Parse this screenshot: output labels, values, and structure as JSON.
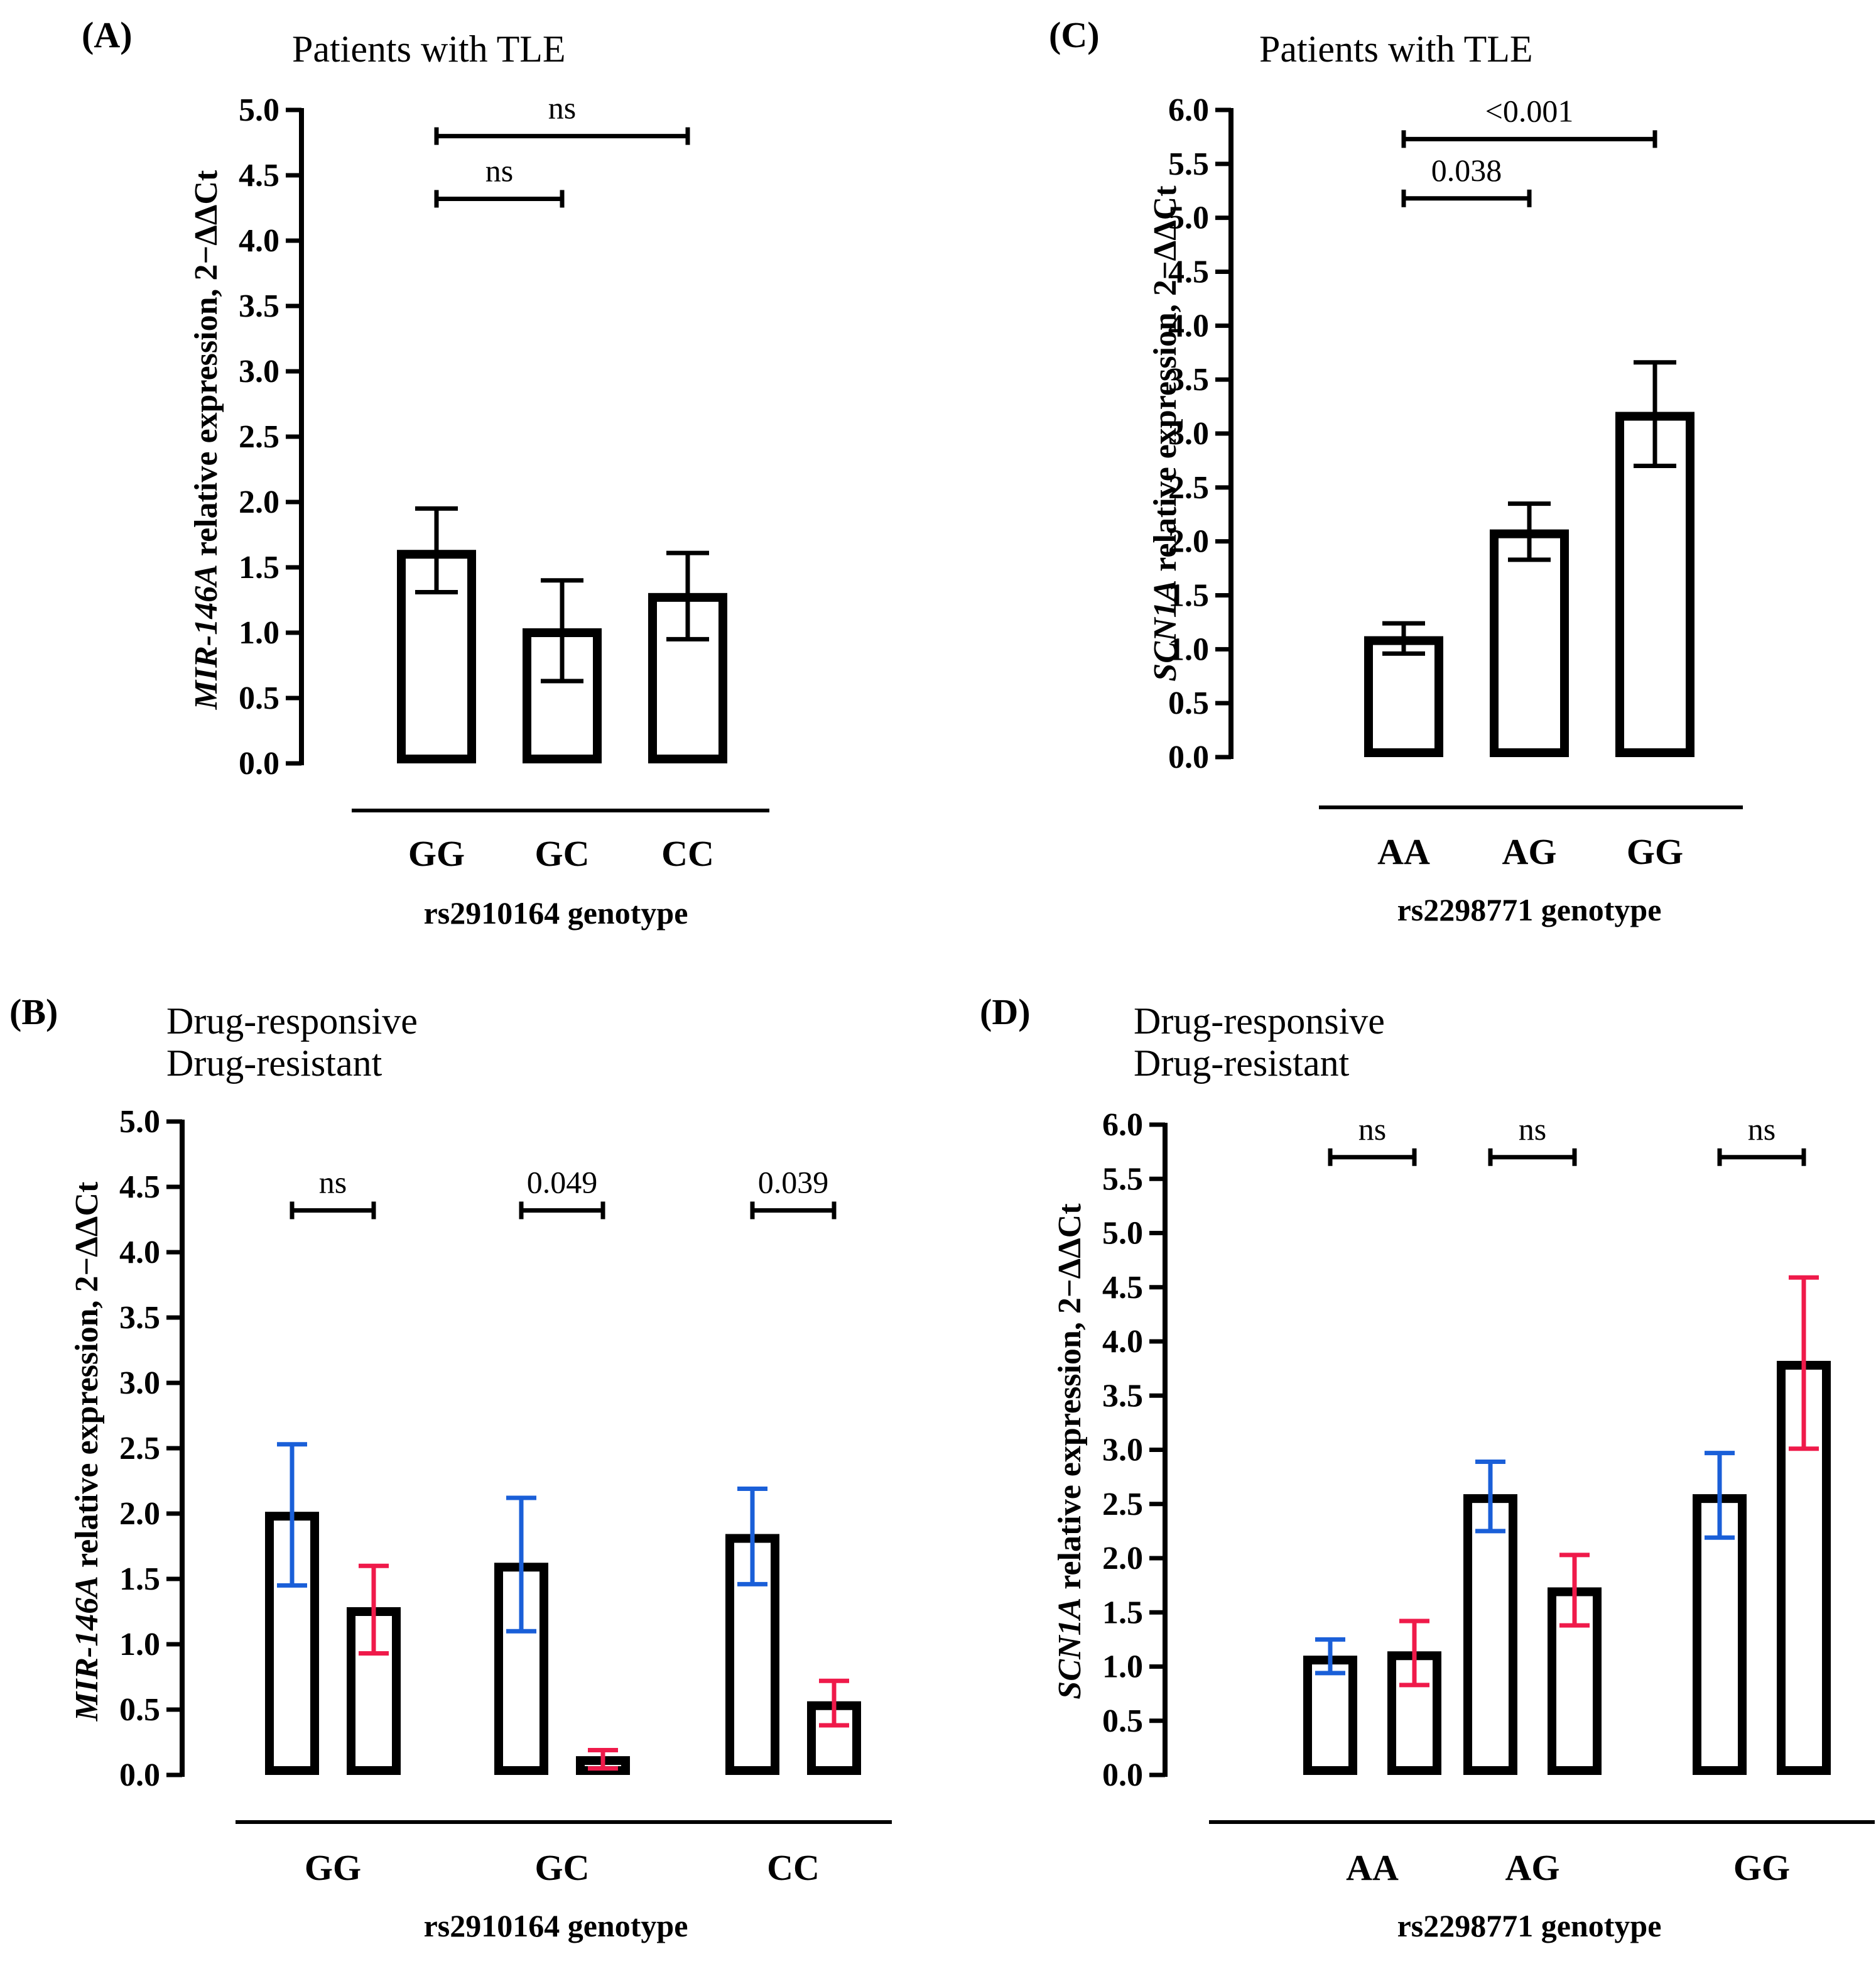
{
  "colors": {
    "axis": "#000000",
    "responsive": "#1a5fd8",
    "resistant": "#ef1a4a"
  },
  "chart_data": [
    {
      "panel": "(A)",
      "type": "bar",
      "title": "Patients with TLE",
      "xlabel": "rs2910164 genotype",
      "ylabel_gene": "MIR-146A",
      "ylabel_rest": " relative expression, 2−ΔΔCt",
      "ylim": [
        0,
        5.0
      ],
      "ystep": 0.5,
      "categories": [
        "GG",
        "GC",
        "CC"
      ],
      "series": [
        {
          "name": "Patients with TLE",
          "values": [
            1.6,
            1.0,
            1.27
          ],
          "err_low": [
            1.31,
            0.63,
            0.95
          ],
          "err_high": [
            1.95,
            1.4,
            1.61
          ]
        }
      ],
      "annotations": [
        {
          "text": "ns",
          "from": 0,
          "to": 2,
          "y": 4.8
        },
        {
          "text": "ns",
          "from": 0,
          "to": 1,
          "y": 4.32
        }
      ]
    },
    {
      "panel": "(B)",
      "type": "bar",
      "title": "",
      "legend": [
        "Drug-responsive",
        "Drug-resistant"
      ],
      "xlabel": "rs2910164 genotype",
      "ylabel_gene": "MIR-146A",
      "ylabel_rest": " relative expression, 2−ΔΔCt",
      "ylim": [
        0,
        5.0
      ],
      "ystep": 0.5,
      "categories": [
        "GG",
        "GC",
        "CC"
      ],
      "series": [
        {
          "name": "Drug-responsive",
          "values": [
            1.98,
            1.59,
            1.81
          ],
          "err_low": [
            1.45,
            1.1,
            1.46
          ],
          "err_high": [
            2.53,
            2.12,
            2.19
          ]
        },
        {
          "name": "Drug-resistant",
          "values": [
            1.25,
            0.11,
            0.53
          ],
          "err_low": [
            0.93,
            0.05,
            0.38
          ],
          "err_high": [
            1.6,
            0.19,
            0.72
          ]
        }
      ],
      "annotations": [
        {
          "text": "ns",
          "group": 0,
          "y": 4.32
        },
        {
          "text": "0.049",
          "group": 1,
          "y": 4.32
        },
        {
          "text": "0.039",
          "group": 2,
          "y": 4.32
        }
      ]
    },
    {
      "panel": "(C)",
      "type": "bar",
      "title": "Patients with TLE",
      "xlabel": "rs2298771 genotype",
      "ylabel_gene": "SCN1A",
      "ylabel_rest": " relative expression, 2−ΔΔCt",
      "ylim": [
        0,
        6.0
      ],
      "ystep": 0.5,
      "categories": [
        "AA",
        "AG",
        "GG"
      ],
      "series": [
        {
          "name": "Patients with TLE",
          "values": [
            1.08,
            2.07,
            3.16
          ],
          "err_low": [
            0.96,
            1.83,
            2.7
          ],
          "err_high": [
            1.24,
            2.35,
            3.66
          ]
        }
      ],
      "annotations": [
        {
          "text": "<0.001",
          "from": 0,
          "to": 2,
          "y": 5.73
        },
        {
          "text": "0.038",
          "from": 0,
          "to": 1,
          "y": 5.18
        }
      ]
    },
    {
      "panel": "(D)",
      "type": "bar",
      "title": "",
      "legend": [
        "Drug-responsive",
        "Drug-resistant"
      ],
      "xlabel": "rs2298771 genotype",
      "ylabel_gene": "SCN1A",
      "ylabel_rest": " relative expression, 2−ΔΔCt",
      "ylim": [
        0,
        6.0
      ],
      "ystep": 0.5,
      "categories": [
        "AA",
        "AG",
        "GG"
      ],
      "series": [
        {
          "name": "Drug-responsive",
          "values": [
            1.06,
            2.55,
            2.55
          ],
          "err_low": [
            0.94,
            2.25,
            2.19
          ],
          "err_high": [
            1.25,
            2.89,
            2.97
          ]
        },
        {
          "name": "Drug-resistant",
          "values": [
            1.1,
            1.69,
            3.78
          ],
          "err_low": [
            0.83,
            1.38,
            3.01
          ],
          "err_high": [
            1.42,
            2.03,
            4.59
          ]
        }
      ],
      "annotations": [
        {
          "text": "ns",
          "group": 0,
          "y": 5.7
        },
        {
          "text": "ns",
          "group": 1,
          "y": 5.7
        },
        {
          "text": "ns",
          "group": 2,
          "y": 5.7
        }
      ]
    }
  ]
}
